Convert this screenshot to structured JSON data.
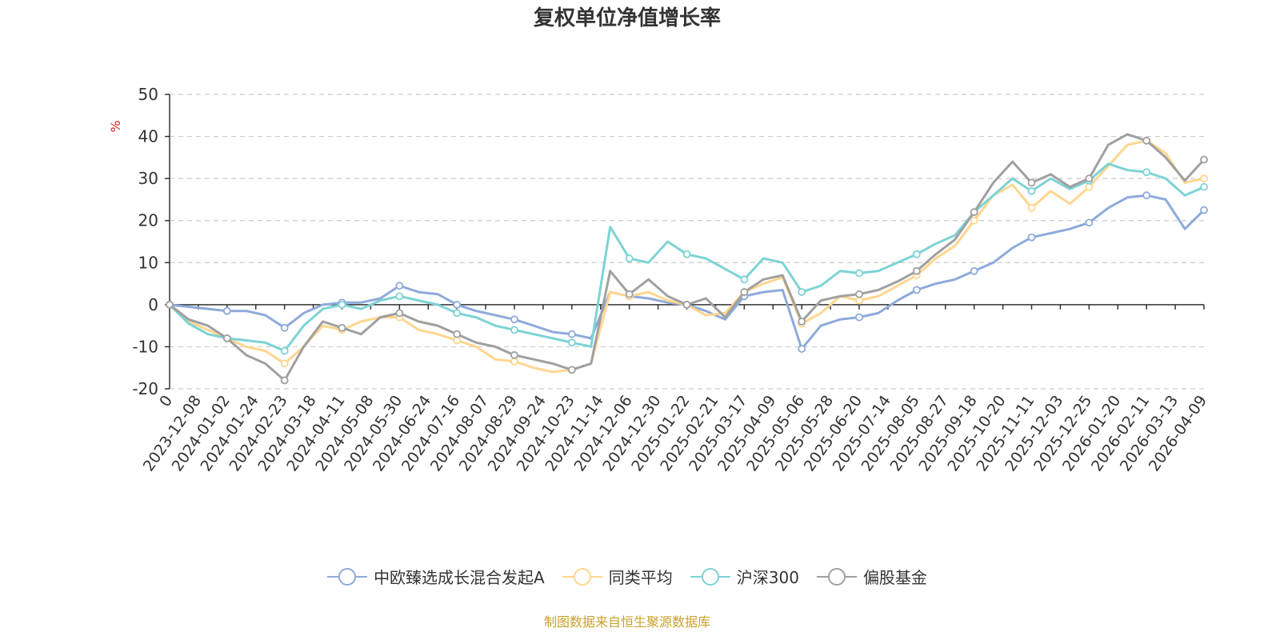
{
  "chart_data": {
    "type": "line",
    "title": "复权单位净值增长率",
    "ylabel": "%",
    "ylim": [
      -20,
      50
    ],
    "yticks": [
      -20,
      -10,
      0,
      10,
      20,
      30,
      40,
      50
    ],
    "grid": true,
    "legend_position": "bottom",
    "x_tick_labels": [
      "0",
      "2023-12-08",
      "2024-01-02",
      "2024-01-24",
      "2024-02-23",
      "2024-03-18",
      "2024-04-11",
      "2024-05-08",
      "2024-05-30",
      "2024-06-24",
      "2024-07-16",
      "2024-08-07",
      "2024-08-29",
      "2024-09-24",
      "2024-10-23",
      "2024-11-14",
      "2024-12-06",
      "2024-12-30",
      "2025-01-22",
      "2025-02-21",
      "2025-03-17",
      "2025-04-09",
      "2025-05-06",
      "2025-05-28",
      "2025-06-20",
      "2025-07-14",
      "2025-08-05",
      "2025-08-27",
      "2025-09-18",
      "2025-10-20",
      "2025-11-11",
      "2025-12-03",
      "2025-12-25",
      "2026-01-20",
      "2026-02-11",
      "2026-03-13",
      "2026-04-09"
    ],
    "series": [
      {
        "name": "中欧臻选成长混合发起A",
        "color": "#8eaadb",
        "values": [
          0,
          -0.5,
          -1.0,
          -1.5,
          -1.5,
          -2.5,
          -5.5,
          -2.0,
          0.0,
          0.5,
          0.5,
          1.5,
          4.5,
          3.0,
          2.5,
          0.0,
          -1.5,
          -2.5,
          -3.5,
          -5.0,
          -6.5,
          -7.0,
          -8.0,
          3.0,
          2.0,
          1.5,
          0.5,
          0.0,
          -1.5,
          -3.5,
          2.0,
          3.0,
          3.5,
          -10.5,
          -5.0,
          -3.5,
          -3.0,
          -2.0,
          1.0,
          3.5,
          5.0,
          6.0,
          8.0,
          10.0,
          13.5,
          16.0,
          17.0,
          18.0,
          19.5,
          23.0,
          25.5,
          26.0,
          25.0,
          18.0,
          22.5
        ]
      },
      {
        "name": "同类平均",
        "color": "#ffd68f",
        "values": [
          0,
          -4.0,
          -6.0,
          -8.0,
          -10.0,
          -11.0,
          -14.0,
          -10.0,
          -5.0,
          -6.0,
          -4.0,
          -3.0,
          -3.0,
          -6.0,
          -7.0,
          -8.5,
          -10.0,
          -13.0,
          -13.5,
          -15.0,
          -16.0,
          -15.5,
          -14.0,
          3.0,
          2.0,
          3.0,
          1.0,
          0.0,
          -2.5,
          -2.0,
          3.0,
          5.0,
          6.5,
          -4.5,
          -2.0,
          2.0,
          1.0,
          2.0,
          4.5,
          7.0,
          11.0,
          14.0,
          20.0,
          26.0,
          28.5,
          23.0,
          27.0,
          24.0,
          28.0,
          33.0,
          38.0,
          39.0,
          36.0,
          29.0,
          30.0
        ]
      },
      {
        "name": "沪深300",
        "color": "#7dd3d5",
        "values": [
          0,
          -4.5,
          -7.0,
          -8.0,
          -8.5,
          -9.0,
          -11.0,
          -5.0,
          -1.0,
          0.0,
          -1.0,
          1.0,
          2.0,
          1.0,
          0.0,
          -2.0,
          -3.0,
          -5.0,
          -6.0,
          -7.0,
          -8.0,
          -9.0,
          -10.0,
          18.5,
          11.0,
          10.0,
          15.0,
          12.0,
          11.0,
          8.5,
          6.0,
          11.0,
          10.0,
          3.0,
          4.5,
          8.0,
          7.5,
          8.0,
          10.0,
          12.0,
          14.5,
          16.5,
          22.0,
          26.0,
          30.0,
          27.0,
          30.0,
          27.5,
          29.5,
          33.5,
          32.0,
          31.5,
          30.0,
          26.0,
          28.0
        ]
      },
      {
        "name": "偏股基金",
        "color": "#a0a0a0",
        "values": [
          0,
          -3.5,
          -5.0,
          -8.0,
          -12.0,
          -14.0,
          -18.0,
          -10.0,
          -4.0,
          -5.5,
          -7.0,
          -3.0,
          -2.0,
          -4.0,
          -5.0,
          -7.0,
          -9.0,
          -10.0,
          -12.0,
          -13.0,
          -14.0,
          -15.5,
          -14.0,
          8.0,
          2.5,
          6.0,
          2.0,
          0.0,
          1.5,
          -3.0,
          3.0,
          6.0,
          7.0,
          -4.0,
          1.0,
          2.0,
          2.5,
          3.5,
          5.5,
          8.0,
          12.0,
          15.5,
          22.0,
          29.0,
          34.0,
          29.0,
          31.0,
          28.0,
          30.0,
          38.0,
          40.5,
          39.0,
          35.0,
          29.5,
          34.5
        ]
      }
    ]
  },
  "footer": {
    "source": "制图数据来自恒生聚源数据库"
  }
}
